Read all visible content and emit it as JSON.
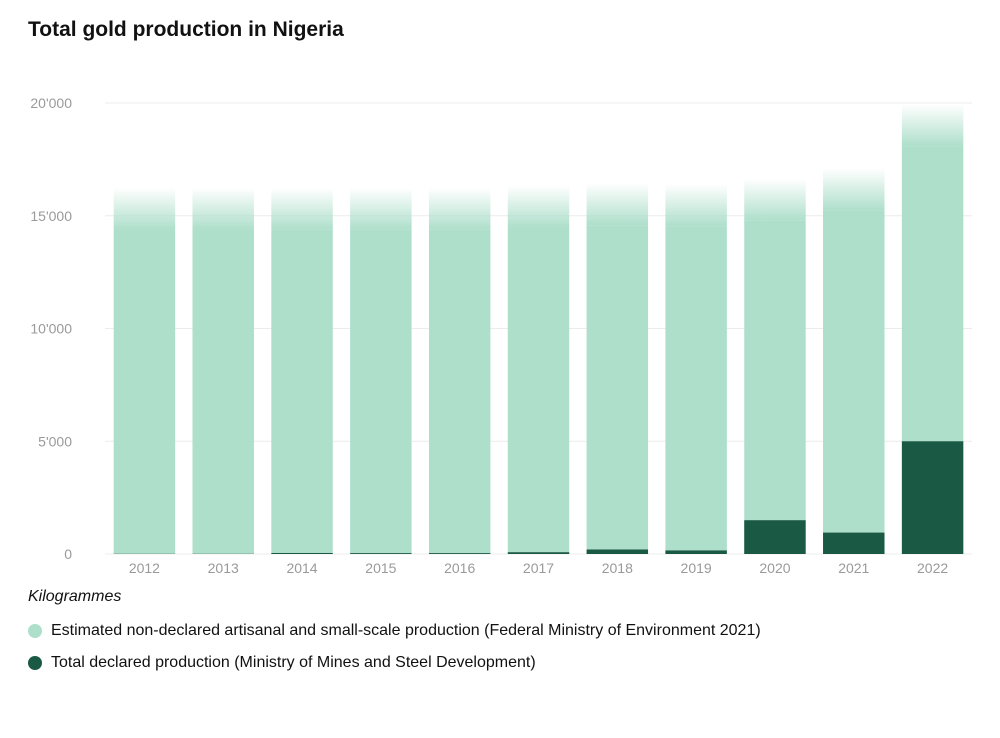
{
  "chart_data": {
    "type": "bar",
    "stacked": true,
    "title": "Total gold production in Nigeria",
    "unit_label": "Kilogrammes",
    "categories": [
      "2012",
      "2013",
      "2014",
      "2015",
      "2016",
      "2017",
      "2018",
      "2019",
      "2020",
      "2021",
      "2022"
    ],
    "y_ticks": [
      "0",
      "5'000",
      "10'000",
      "15'000",
      "20'000"
    ],
    "ylim": [
      0,
      20000
    ],
    "grid": true,
    "legend_position": "bottom-left",
    "series": [
      {
        "name": "Total declared production (Ministry of Mines and Steel Development)",
        "color": "#1a5944",
        "values": [
          10,
          10,
          45,
          40,
          40,
          80,
          200,
          160,
          1500,
          950,
          5000
        ]
      },
      {
        "name": "Estimated non-declared artisanal and small-scale production (Federal Ministry of Environment 2021)",
        "color": "#aedfcb",
        "values": [
          16240,
          16240,
          16195,
          16200,
          16200,
          16260,
          16240,
          16240,
          15140,
          16150,
          14950
        ]
      }
    ]
  }
}
